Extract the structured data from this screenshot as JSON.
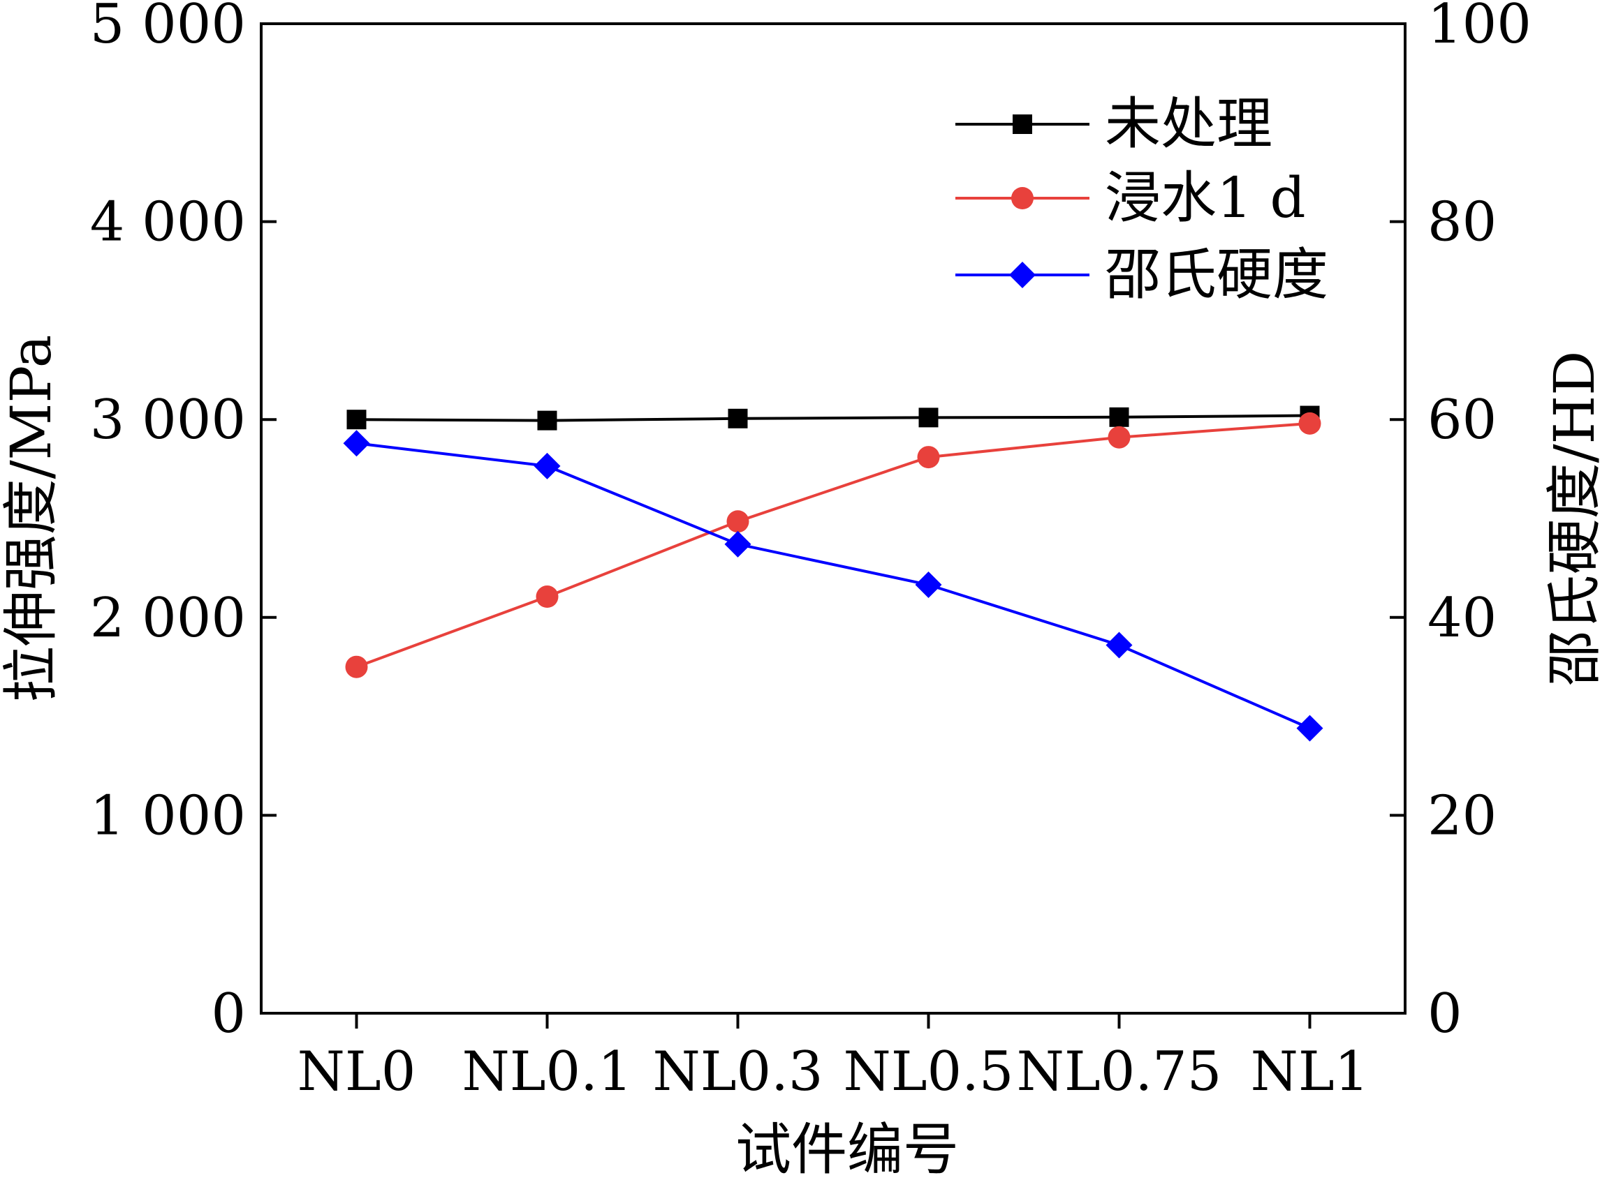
{
  "chart_data": {
    "type": "line",
    "categories": [
      "NL0",
      "NL0.1",
      "NL0.3",
      "NL0.5",
      "NL0.75",
      "NL1"
    ],
    "xlabel": "试件编号",
    "ylabel_left": "拉伸强度/MPa",
    "ylabel_right": "邵氏硬度/HD",
    "ylim_left": [
      0,
      5000
    ],
    "ylim_right": [
      0,
      100
    ],
    "yticks_left": [
      "0",
      "1 000",
      "2 000",
      "3 000",
      "4 000",
      "5 000"
    ],
    "yticks_right": [
      "0",
      "20",
      "40",
      "60",
      "80",
      "100"
    ],
    "yticks_left_values": [
      0,
      1000,
      2000,
      3000,
      4000,
      5000
    ],
    "yticks_right_values": [
      0,
      20,
      40,
      60,
      80,
      100
    ],
    "grid": false,
    "legend_position": "top-right",
    "series": [
      {
        "name": "未处理",
        "axis": "left",
        "marker": "square",
        "color": "#000000",
        "values": [
          3000,
          2995,
          3005,
          3010,
          3012,
          3020
        ]
      },
      {
        "name": "浸水1 d",
        "axis": "left",
        "marker": "circle",
        "color": "#e8413c",
        "values": [
          1750,
          2105,
          2485,
          2810,
          2910,
          2980
        ]
      },
      {
        "name": "邵氏硬度",
        "axis": "right",
        "marker": "diamond",
        "color": "#0000ff",
        "values": [
          57.6,
          55.3,
          47.4,
          43.3,
          37.2,
          28.8
        ]
      }
    ]
  }
}
